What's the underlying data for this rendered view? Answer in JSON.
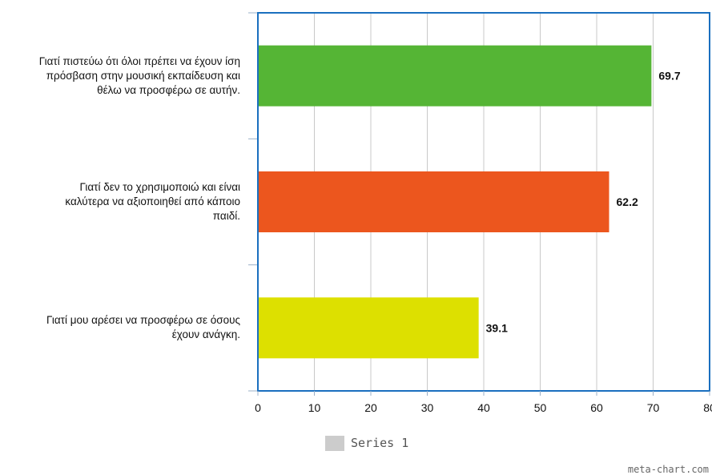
{
  "chart_data": {
    "type": "bar",
    "orientation": "horizontal",
    "categories": [
      "Γιατί πιστεύω ότι όλοι πρέπει να έχουν ίση πρόσβαση στην μουσική εκπαίδευση και θέλω να προσφέρω σε αυτήν.",
      "Γιατί δεν το χρησιμοποιώ και είναι καλύτερα να αξιοποιηθεί από κάποιο παιδί.",
      "Γιατί μου αρέσει να προσφέρω σε όσους έχουν ανάγκη."
    ],
    "series": [
      {
        "name": "Series 1",
        "values": [
          69.7,
          62.2,
          39.1
        ]
      }
    ],
    "data_labels": [
      "69.7",
      "62.2",
      "39.1"
    ],
    "bar_colors": [
      "#55b535",
      "#ec561e",
      "#dde000"
    ],
    "xlim": [
      0,
      80
    ],
    "xticks": [
      0,
      10,
      20,
      30,
      40,
      50,
      60,
      70,
      80
    ],
    "grid": true,
    "legend": "bottom-center",
    "frame_color": "#1a6fbf",
    "legend_color": "#cccccc"
  },
  "category_lines": [
    [
      "Γιατί πιστεύω ότι όλοι πρέπει να έχουν ίση",
      "πρόσβαση στην μουσική εκπαίδευση και",
      "θέλω να προσφέρω σε αυτήν."
    ],
    [
      "Γιατί δεν το χρησιμοποιώ και είναι",
      "καλύτερα να αξιοποιηθεί από κάποιο",
      "παιδί."
    ],
    [
      "Γιατί μου αρέσει να προσφέρω σε όσους",
      "έχουν ανάγκη."
    ]
  ],
  "legend_label": "Series 1",
  "credit": "meta-chart.com"
}
